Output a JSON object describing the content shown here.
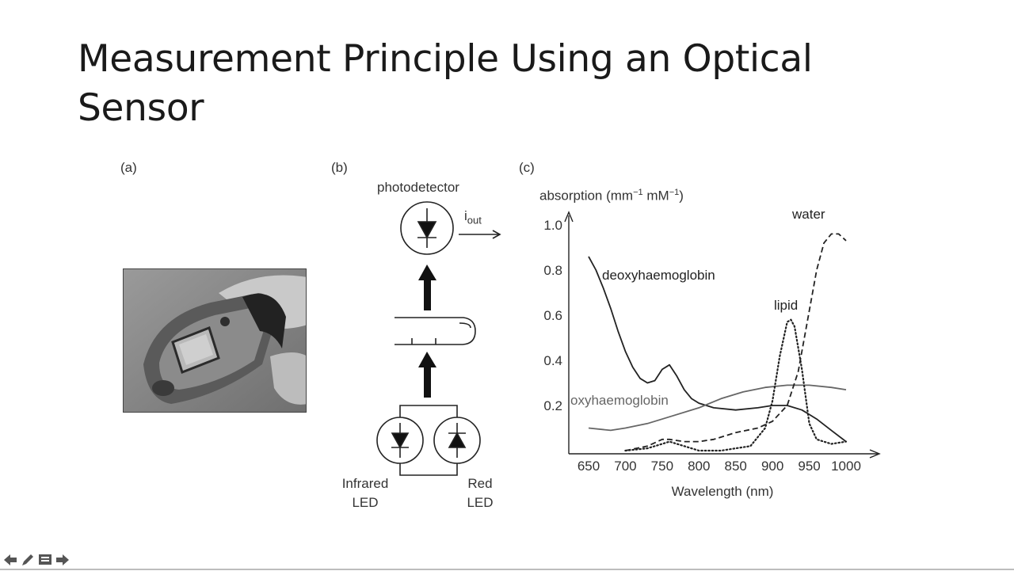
{
  "slide": {
    "title": "Measurement Principle Using an Optical Sensor"
  },
  "panels": {
    "a": {
      "label": "(a)"
    },
    "b": {
      "label": "(b)",
      "photodetector": "photodetector",
      "current": "i",
      "current_sub": "out",
      "infrared_line1": "Infrared",
      "infrared_line2": "LED",
      "red_line1": "Red",
      "red_line2": "LED"
    },
    "c": {
      "label": "(c)"
    }
  },
  "chart_data": {
    "type": "line",
    "ylabel": "absorption (mm",
    "ylabel_sup1": "−1",
    "ylabel_mid": " mM",
    "ylabel_sup2": "−1",
    "ylabel_end": ")",
    "xlabel": "Wavelength (nm)",
    "xlim": [
      630,
      1020
    ],
    "ylim": [
      0,
      1.0
    ],
    "x_ticks": [
      650,
      700,
      750,
      800,
      850,
      900,
      950,
      1000
    ],
    "y_ticks": [
      0.2,
      0.4,
      0.6,
      0.8,
      1.0
    ],
    "y_tick_labels": [
      "0.2",
      "0.4",
      "0.6",
      "0.8",
      "1.0"
    ],
    "series": [
      {
        "name": "deoxyhaemoglobin",
        "style": "solid",
        "color": "#222222",
        "x": [
          650,
          660,
          670,
          680,
          690,
          700,
          710,
          720,
          730,
          740,
          750,
          760,
          770,
          780,
          790,
          800,
          820,
          850,
          880,
          900,
          920,
          940,
          960,
          980,
          1000
        ],
        "y": [
          0.86,
          0.8,
          0.72,
          0.63,
          0.53,
          0.44,
          0.37,
          0.32,
          0.3,
          0.31,
          0.36,
          0.38,
          0.33,
          0.27,
          0.23,
          0.21,
          0.19,
          0.18,
          0.19,
          0.2,
          0.2,
          0.18,
          0.14,
          0.09,
          0.04
        ]
      },
      {
        "name": "oxyhaemoglobin",
        "style": "solid",
        "color": "#666666",
        "x": [
          650,
          680,
          700,
          730,
          760,
          800,
          830,
          860,
          890,
          920,
          950,
          980,
          1000
        ],
        "y": [
          0.1,
          0.09,
          0.1,
          0.12,
          0.15,
          0.19,
          0.23,
          0.26,
          0.28,
          0.29,
          0.29,
          0.28,
          0.27
        ]
      },
      {
        "name": "water",
        "style": "dashed",
        "color": "#222222",
        "x": [
          700,
          730,
          750,
          760,
          780,
          800,
          820,
          850,
          880,
          900,
          920,
          935,
          950,
          960,
          970,
          980,
          990,
          1000
        ],
        "y": [
          0.0,
          0.02,
          0.05,
          0.05,
          0.04,
          0.04,
          0.05,
          0.08,
          0.1,
          0.13,
          0.2,
          0.35,
          0.62,
          0.8,
          0.92,
          0.96,
          0.96,
          0.93
        ]
      },
      {
        "name": "lipid",
        "style": "dotted",
        "color": "#222222",
        "x": [
          700,
          730,
          750,
          760,
          780,
          800,
          830,
          850,
          870,
          890,
          900,
          910,
          920,
          925,
          930,
          940,
          950,
          960,
          980,
          1000
        ],
        "y": [
          0.0,
          0.01,
          0.03,
          0.04,
          0.02,
          0.0,
          0.0,
          0.01,
          0.02,
          0.1,
          0.22,
          0.42,
          0.57,
          0.58,
          0.55,
          0.36,
          0.12,
          0.05,
          0.03,
          0.04
        ]
      }
    ]
  }
}
